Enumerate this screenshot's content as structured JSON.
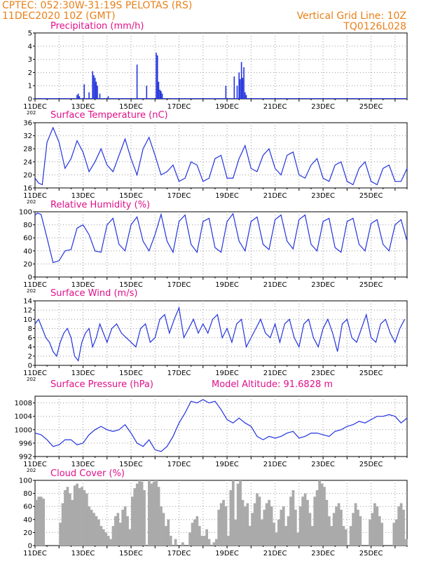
{
  "header": {
    "line1_left": "CPTEC:  052:30W-31:19S  PELOTAS (RS)",
    "line2_left": "11DEC2020 10Z (GMT)",
    "line1_right": "Vertical Grid Line: 10Z",
    "line2_right": "TQ0126L028"
  },
  "colors": {
    "line": "#2233dd",
    "cloud": "#aaaaaa",
    "title": "#e0108a",
    "header": "#e8801a"
  },
  "x_labels": [
    "11DEC",
    "13DEC",
    "15DEC",
    "17DEC",
    "19DEC",
    "21DEC",
    "23DEC",
    "25DEC"
  ],
  "year_fragment": "202",
  "model_altitude": "Model Altitude: 91.6828 m",
  "chart_data": [
    {
      "type": "bar",
      "title": "Precipitation (mm/h)",
      "x_unit": "days since 11DEC 10Z",
      "x": [
        1.75,
        1.8,
        1.85,
        2.05,
        2.25,
        2.4,
        2.45,
        2.5,
        2.55,
        2.6,
        2.7,
        3.05,
        4.25,
        4.65,
        5.05,
        5.1,
        5.15,
        5.2,
        5.22,
        5.25,
        5.3,
        7.95,
        8.3,
        8.42,
        8.5,
        8.55,
        8.6,
        8.65,
        8.7,
        8.75,
        8.8
      ],
      "values": [
        0.3,
        0.4,
        0.2,
        1.1,
        0.5,
        2.1,
        1.8,
        1.6,
        1.3,
        1.0,
        0.4,
        0.2,
        2.6,
        1.0,
        3.5,
        3.3,
        1.3,
        0.7,
        0.5,
        0.6,
        0.4,
        1.0,
        1.7,
        1.0,
        2.0,
        1.5,
        2.8,
        1.6,
        2.4,
        0.5,
        0.3
      ],
      "ylim": [
        0,
        5
      ],
      "yticks": [
        0,
        1,
        2,
        3,
        4,
        5
      ]
    },
    {
      "type": "line",
      "title": "Surface Temperature (nC)",
      "x_unit": "days since 11DEC 10Z",
      "x": [
        0,
        0.15,
        0.3,
        0.5,
        0.75,
        1.0,
        1.25,
        1.5,
        1.75,
        2.0,
        2.25,
        2.5,
        2.75,
        3.0,
        3.25,
        3.5,
        3.75,
        4.0,
        4.25,
        4.5,
        4.75,
        5.0,
        5.25,
        5.5,
        5.75,
        6.0,
        6.25,
        6.5,
        6.75,
        7.0,
        7.25,
        7.5,
        7.75,
        8.0,
        8.25,
        8.5,
        8.75,
        9.0,
        9.25,
        9.5,
        9.75,
        10.0,
        10.25,
        10.5,
        10.75,
        11.0,
        11.25,
        11.5,
        11.75,
        12.0,
        12.25,
        12.5,
        12.75,
        13.0,
        13.25,
        13.5,
        13.75,
        14.0,
        14.25,
        14.5,
        14.75,
        15.0,
        15.25,
        15.5
      ],
      "values": [
        19,
        17.5,
        17,
        30,
        34.5,
        30,
        22,
        25,
        30.5,
        27,
        21,
        24,
        28,
        23,
        21,
        26,
        31,
        25,
        20,
        28,
        31.5,
        26,
        20,
        21,
        23,
        18,
        19,
        24,
        23,
        18,
        19,
        25,
        26,
        19,
        19,
        25,
        29,
        22,
        21,
        26,
        28,
        22,
        20,
        26,
        27,
        20,
        19,
        23,
        25,
        19,
        18,
        23,
        24,
        18,
        17,
        22,
        24,
        18,
        17,
        22,
        23,
        18,
        18,
        22
      ],
      "ylim": [
        16,
        36
      ],
      "yticks": [
        16,
        20,
        24,
        28,
        32,
        36
      ]
    },
    {
      "type": "line",
      "title": "Relative Humidity (%)",
      "x_unit": "days since 11DEC 10Z",
      "x": [
        0,
        0.1,
        0.25,
        0.5,
        0.75,
        1.0,
        1.25,
        1.5,
        1.75,
        2.0,
        2.25,
        2.5,
        2.75,
        3.0,
        3.25,
        3.5,
        3.75,
        4.0,
        4.25,
        4.5,
        4.75,
        5.0,
        5.25,
        5.5,
        5.75,
        6.0,
        6.25,
        6.5,
        6.75,
        7.0,
        7.25,
        7.5,
        7.75,
        8.0,
        8.25,
        8.5,
        8.75,
        9.0,
        9.25,
        9.5,
        9.75,
        10.0,
        10.25,
        10.5,
        10.75,
        11.0,
        11.25,
        11.5,
        11.75,
        12.0,
        12.25,
        12.5,
        12.75,
        13.0,
        13.25,
        13.5,
        13.75,
        14.0,
        14.25,
        14.5,
        14.75,
        15.0,
        15.25,
        15.5
      ],
      "values": [
        95,
        98,
        96,
        60,
        22,
        25,
        40,
        42,
        75,
        80,
        65,
        40,
        38,
        80,
        90,
        50,
        40,
        80,
        92,
        55,
        40,
        65,
        96,
        55,
        38,
        85,
        95,
        50,
        38,
        85,
        90,
        45,
        38,
        85,
        97,
        55,
        40,
        85,
        92,
        50,
        42,
        88,
        95,
        55,
        43,
        88,
        95,
        50,
        40,
        85,
        90,
        45,
        38,
        85,
        90,
        50,
        40,
        82,
        88,
        50,
        40,
        80,
        88,
        55
      ],
      "ylim": [
        0,
        100
      ],
      "yticks": [
        0,
        20,
        40,
        60,
        80,
        100
      ]
    },
    {
      "type": "line",
      "title": "Surface Wind (m/s)",
      "x_unit": "days since 11DEC 10Z",
      "x": [
        0,
        0.15,
        0.3,
        0.45,
        0.6,
        0.75,
        0.9,
        1.05,
        1.2,
        1.35,
        1.5,
        1.65,
        1.8,
        1.95,
        2.1,
        2.25,
        2.4,
        2.55,
        2.7,
        2.85,
        3.0,
        3.2,
        3.4,
        3.6,
        3.8,
        4.0,
        4.2,
        4.4,
        4.6,
        4.8,
        5.0,
        5.2,
        5.4,
        5.6,
        5.8,
        6.0,
        6.2,
        6.4,
        6.6,
        6.8,
        7.0,
        7.2,
        7.4,
        7.6,
        7.8,
        8.0,
        8.2,
        8.4,
        8.6,
        8.8,
        9.0,
        9.2,
        9.4,
        9.6,
        9.8,
        10.0,
        10.2,
        10.4,
        10.6,
        10.8,
        11.0,
        11.2,
        11.4,
        11.6,
        11.8,
        12.0,
        12.2,
        12.4,
        12.6,
        12.8,
        13.0,
        13.2,
        13.4,
        13.6,
        13.8,
        14.0,
        14.2,
        14.4,
        14.6,
        14.8,
        15.0,
        15.2,
        15.4
      ],
      "values": [
        9,
        10,
        8,
        6,
        5,
        3,
        2,
        5,
        7,
        8,
        6,
        2,
        1,
        5,
        7,
        8,
        4,
        6,
        9,
        7,
        5,
        8,
        9,
        7,
        6,
        5,
        4,
        8,
        9,
        5,
        6,
        10,
        11,
        7,
        10,
        12.5,
        6,
        8,
        10,
        7,
        9,
        7,
        10,
        11,
        6,
        8,
        5,
        9,
        10,
        4,
        6,
        8,
        10,
        7,
        6,
        9,
        5,
        9,
        10,
        6,
        4,
        9,
        10,
        6,
        4,
        8,
        10,
        7,
        3,
        9,
        10,
        6,
        5,
        8,
        11,
        6,
        5,
        9,
        10,
        7,
        5,
        8,
        10
      ],
      "ylim": [
        0,
        14
      ],
      "yticks": [
        0,
        2,
        4,
        6,
        8,
        10,
        12,
        14
      ]
    },
    {
      "type": "line",
      "title": "Surface Pressure (hPa)",
      "x_unit": "days since 11DEC 10Z",
      "x": [
        0,
        0.25,
        0.5,
        0.75,
        1.0,
        1.25,
        1.5,
        1.75,
        2.0,
        2.25,
        2.5,
        2.75,
        3.0,
        3.25,
        3.5,
        3.75,
        4.0,
        4.25,
        4.5,
        4.75,
        5.0,
        5.25,
        5.5,
        5.75,
        6.0,
        6.25,
        6.5,
        6.75,
        7.0,
        7.25,
        7.5,
        7.75,
        8.0,
        8.25,
        8.5,
        8.75,
        9.0,
        9.25,
        9.5,
        9.75,
        10.0,
        10.25,
        10.5,
        10.75,
        11.0,
        11.25,
        11.5,
        11.75,
        12.0,
        12.25,
        12.5,
        12.75,
        13.0,
        13.25,
        13.5,
        13.75,
        14.0,
        14.25,
        14.5,
        14.75,
        15.0,
        15.25,
        15.5
      ],
      "values": [
        999,
        998.5,
        997,
        995,
        995.5,
        997,
        997,
        995.5,
        996,
        998.5,
        1000,
        1001,
        1000,
        999.5,
        1000,
        1001.5,
        999,
        996,
        995,
        997,
        994,
        993.5,
        995,
        998,
        1002,
        1005,
        1008.5,
        1008,
        1009,
        1008,
        1008.5,
        1006,
        1003,
        1002,
        1003.5,
        1002,
        1001,
        998,
        997,
        998,
        997.5,
        998,
        999,
        999.5,
        997.5,
        998,
        999,
        999,
        998.5,
        998,
        999.5,
        1000,
        1001,
        1001.5,
        1002.5,
        1002,
        1003,
        1004,
        1004,
        1004.5,
        1004,
        1002,
        1003.5
      ],
      "ylim": [
        992,
        1010
      ],
      "yticks": [
        992,
        996,
        1000,
        1004,
        1008
      ]
    },
    {
      "type": "bar",
      "title": "Cloud Cover (%)",
      "x_unit": "days since 11DEC 10Z",
      "x": [
        0.0,
        0.1,
        0.2,
        0.3,
        0.4,
        0.5,
        0.6,
        0.7,
        0.8,
        0.9,
        1.0,
        1.1,
        1.2,
        1.3,
        1.4,
        1.5,
        1.6,
        1.7,
        1.8,
        1.9,
        2.0,
        2.1,
        2.2,
        2.3,
        2.4,
        2.5,
        2.6,
        2.7,
        2.8,
        2.9,
        3.0,
        3.1,
        3.2,
        3.3,
        3.4,
        3.5,
        3.6,
        3.7,
        3.8,
        3.9,
        4.0,
        4.1,
        4.2,
        4.3,
        4.4,
        4.5,
        4.6,
        4.7,
        4.8,
        4.9,
        5.0,
        5.1,
        5.2,
        5.3,
        5.4,
        5.5,
        5.6,
        5.7,
        5.8,
        5.9,
        6.0,
        6.1,
        6.2,
        6.3,
        6.4,
        6.5,
        6.6,
        6.7,
        6.8,
        6.9,
        7.0,
        7.1,
        7.2,
        7.3,
        7.4,
        7.5,
        7.6,
        7.7,
        7.8,
        7.9,
        8.0,
        8.1,
        8.2,
        8.3,
        8.4,
        8.5,
        8.6,
        8.7,
        8.8,
        8.9,
        9.0,
        9.1,
        9.2,
        9.3,
        9.4,
        9.5,
        9.6,
        9.7,
        9.8,
        9.9,
        10.0,
        10.1,
        10.2,
        10.3,
        10.4,
        10.5,
        10.6,
        10.7,
        10.8,
        10.9,
        11.0,
        11.1,
        11.2,
        11.3,
        11.4,
        11.5,
        11.6,
        11.7,
        11.8,
        11.9,
        12.0,
        12.1,
        12.2,
        12.3,
        12.4,
        12.5,
        12.6,
        12.7,
        12.8,
        12.9,
        13.0,
        13.1,
        13.2,
        13.3,
        13.4,
        13.5,
        13.6,
        13.7,
        13.8,
        13.9,
        14.0,
        14.1,
        14.2,
        14.3,
        14.4,
        14.5,
        14.6,
        14.7,
        14.8,
        14.9,
        15.0,
        15.1,
        15.2,
        15.3,
        15.4
      ],
      "values": [
        70,
        75,
        75,
        72,
        0,
        0,
        0,
        0,
        0,
        0,
        35,
        65,
        85,
        90,
        80,
        70,
        92,
        95,
        88,
        90,
        85,
        80,
        60,
        55,
        50,
        45,
        40,
        30,
        25,
        20,
        15,
        10,
        30,
        45,
        50,
        35,
        55,
        60,
        45,
        25,
        75,
        88,
        95,
        100,
        98,
        85,
        0,
        100,
        95,
        98,
        100,
        90,
        60,
        50,
        30,
        40,
        15,
        0,
        10,
        0,
        0,
        5,
        0,
        0,
        20,
        35,
        40,
        45,
        30,
        15,
        15,
        25,
        10,
        0,
        5,
        10,
        55,
        65,
        70,
        60,
        15,
        85,
        100,
        40,
        95,
        100,
        70,
        60,
        65,
        30,
        50,
        65,
        80,
        75,
        40,
        55,
        65,
        70,
        60,
        35,
        20,
        40,
        55,
        60,
        30,
        45,
        75,
        85,
        55,
        20,
        60,
        75,
        80,
        70,
        50,
        30,
        75,
        85,
        100,
        95,
        90,
        70,
        45,
        30,
        50,
        60,
        65,
        55,
        30,
        25,
        0,
        30,
        50,
        65,
        55,
        45,
        0,
        0,
        0,
        40,
        50,
        65,
        60,
        45,
        35,
        0,
        0,
        0,
        0,
        35,
        40,
        60,
        65,
        55,
        10
      ],
      "ylim": [
        0,
        100
      ],
      "yticks": [
        0,
        20,
        40,
        60,
        80,
        100
      ]
    }
  ]
}
